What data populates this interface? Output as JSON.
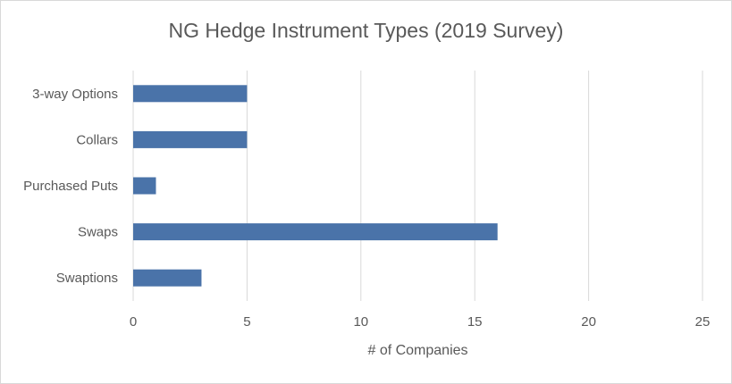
{
  "chart_data": {
    "type": "bar",
    "orientation": "horizontal",
    "title": "NG Hedge Instrument Types (2019 Survey)",
    "xlabel": "# of Companies",
    "ylabel": "",
    "categories": [
      "3-way Options",
      "Collars",
      "Purchased Puts",
      "Swaps",
      "Swaptions"
    ],
    "values": [
      5,
      5,
      1,
      16,
      3
    ],
    "xlim": [
      0,
      25
    ],
    "xticks": [
      "0",
      "5",
      "10",
      "15",
      "20",
      "25"
    ],
    "grid": "vertical",
    "legend": "none",
    "colors": {
      "bar": "#4a73a9",
      "grid": "#d9d9d9",
      "text": "#595959"
    }
  }
}
